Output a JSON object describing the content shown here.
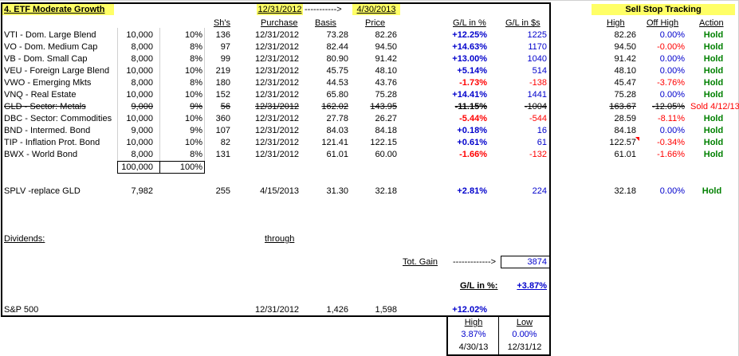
{
  "title": "4. ETF Moderate Growth",
  "date_start": "12/31/2012",
  "arrow": "----------->",
  "date_end": "4/30/2013",
  "sell_stop_title": "Sell Stop Tracking",
  "headers": {
    "shares": "Sh's",
    "purchase": "Purchase",
    "basis": "Basis",
    "price": "Price",
    "gl_pct": "G/L in %",
    "gl_dollars": "G/L in $s",
    "high": "High",
    "off_high": "Off High",
    "action": "Action"
  },
  "holdings": [
    {
      "name": "VTI - Dom. Large Blend",
      "amount": "10,000",
      "pct": "10%",
      "shares": "136",
      "purchase": "12/31/2012",
      "basis": "73.28",
      "price": "82.26",
      "gl_pct": "+12.25%",
      "gl_dollars": "1225",
      "high": "82.26",
      "off_high": "0.00%",
      "action": "Hold"
    },
    {
      "name": "VO - Dom. Medium Cap",
      "amount": "8,000",
      "pct": "8%",
      "shares": "97",
      "purchase": "12/31/2012",
      "basis": "82.44",
      "price": "94.50",
      "gl_pct": "+14.63%",
      "gl_dollars": "1170",
      "high": "94.50",
      "off_high": "-0.00%",
      "action": "Hold"
    },
    {
      "name": "VB - Dom. Small Cap",
      "amount": "8,000",
      "pct": "8%",
      "shares": "99",
      "purchase": "12/31/2012",
      "basis": "80.90",
      "price": "91.42",
      "gl_pct": "+13.00%",
      "gl_dollars": "1040",
      "high": "91.42",
      "off_high": "0.00%",
      "action": "Hold"
    },
    {
      "name": "VEU - Foreign Large Blend",
      "amount": "10,000",
      "pct": "10%",
      "shares": "219",
      "purchase": "12/31/2012",
      "basis": "45.75",
      "price": "48.10",
      "gl_pct": "+5.14%",
      "gl_dollars": "514",
      "high": "48.10",
      "off_high": "0.00%",
      "action": "Hold"
    },
    {
      "name": "VWO - Emerging Mkts",
      "amount": "8,000",
      "pct": "8%",
      "shares": "180",
      "purchase": "12/31/2012",
      "basis": "44.53",
      "price": "43.76",
      "gl_pct": "-1.73%",
      "gl_dollars": "-138",
      "high": "45.47",
      "off_high": "-3.76%",
      "action": "Hold"
    },
    {
      "name": "VNQ - Real Estate",
      "amount": "10,000",
      "pct": "10%",
      "shares": "152",
      "purchase": "12/31/2012",
      "basis": "65.80",
      "price": "75.28",
      "gl_pct": "+14.41%",
      "gl_dollars": "1441",
      "high": "75.28",
      "off_high": "0.00%",
      "action": "Hold"
    },
    {
      "name": "GLD - Sector: Metals",
      "amount": "9,000",
      "pct": "9%",
      "shares": "56",
      "purchase": "12/31/2012",
      "basis": "162.02",
      "price": "143.95",
      "gl_pct": "-11.15%",
      "gl_dollars": "-1004",
      "high": "163.67",
      "off_high": "-12.05%",
      "action": "Sold 4/12/13"
    },
    {
      "name": "DBC - Sector: Commodities",
      "amount": "10,000",
      "pct": "10%",
      "shares": "360",
      "purchase": "12/31/2012",
      "basis": "27.78",
      "price": "26.27",
      "gl_pct": "-5.44%",
      "gl_dollars": "-544",
      "high": "28.59",
      "off_high": "-8.11%",
      "action": "Hold"
    },
    {
      "name": "BND - Intermed. Bond",
      "amount": "9,000",
      "pct": "9%",
      "shares": "107",
      "purchase": "12/31/2012",
      "basis": "84.03",
      "price": "84.18",
      "gl_pct": "+0.18%",
      "gl_dollars": "16",
      "high": "84.18",
      "off_high": "0.00%",
      "action": "Hold"
    },
    {
      "name": "TIP - Inflation Prot. Bond",
      "amount": "10,000",
      "pct": "10%",
      "shares": "82",
      "purchase": "12/31/2012",
      "basis": "121.41",
      "price": "122.15",
      "gl_pct": "+0.61%",
      "gl_dollars": "61",
      "high": "122.57",
      "off_high": "-0.34%",
      "action": "Hold"
    },
    {
      "name": "BWX - World Bond",
      "amount": "8,000",
      "pct": "8%",
      "shares": "131",
      "purchase": "12/31/2012",
      "basis": "61.01",
      "price": "60.00",
      "gl_pct": "-1.66%",
      "gl_dollars": "-132",
      "high": "61.01",
      "off_high": "-1.66%",
      "action": "Hold"
    }
  ],
  "totals": {
    "amount": "100,000",
    "pct": "100%"
  },
  "replacement": {
    "name": "SPLV -replace GLD",
    "amount": "7,982",
    "shares": "255",
    "purchase": "4/15/2013",
    "basis": "31.30",
    "price": "32.18",
    "gl_pct": "+2.81%",
    "gl_dollars": "224",
    "high": "32.18",
    "off_high": "0.00%",
    "action": "Hold"
  },
  "dividends_label": "Dividends:",
  "through_label": "through",
  "tot_gain": {
    "label": "Tot. Gain",
    "arrow": "------------->",
    "value": "3874"
  },
  "gl_pct_summary": {
    "label": "G/L in %:",
    "value": "+3.87%"
  },
  "sp500": {
    "name": "S&P 500",
    "purchase": "12/31/2012",
    "basis": "1,426",
    "price": "1,598",
    "gl_pct": "+12.02%"
  },
  "high_low": {
    "high_label": "High",
    "low_label": "Low",
    "high_value": "3.87%",
    "low_value": "0.00%",
    "high_date": "4/30/13",
    "low_date": "12/31/12"
  },
  "colors": {
    "highlight": "#ffff66",
    "positive": "#0000cc",
    "negative": "#ff0000",
    "action": "#008000"
  }
}
